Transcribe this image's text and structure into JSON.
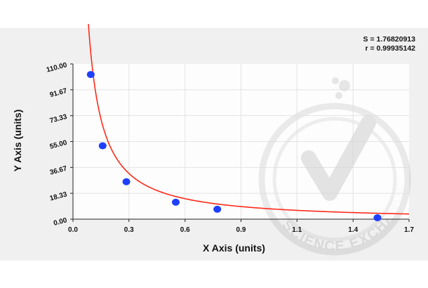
{
  "stats": {
    "s_text": "S = 1.76820913",
    "r_text": "r = 0.99935142"
  },
  "watermark": {
    "text": "THE SCIENCE EXCHANGE NETWORK",
    "kind": "logo"
  },
  "colors": {
    "curve": "#ff2a1a",
    "points": "#1f3fff",
    "plot_bg": "#ffffff",
    "panel_bg": "#f0f0f0",
    "grid": "#e3e3e3",
    "watermark": "#d8d8d8"
  },
  "chart_data": {
    "type": "scatter",
    "title": "",
    "xlabel": "X Axis (units)",
    "ylabel": "Y Axis (units)",
    "xlim": [
      0,
      1.7
    ],
    "ylim": [
      0,
      110
    ],
    "xticks": [
      "0.0",
      "0.3",
      "0.6",
      "0.9",
      "1.1",
      "1.4",
      "1.7"
    ],
    "xtick_values": [
      0.0,
      0.283,
      0.567,
      0.85,
      1.133,
      1.417,
      1.7
    ],
    "yticks": [
      "0.00",
      "18.33",
      "36.67",
      "55.00",
      "73.33",
      "91.67",
      "110.00"
    ],
    "ytick_values": [
      0,
      18.33,
      36.67,
      55.0,
      73.33,
      91.67,
      110.0
    ],
    "grid": true,
    "series": [
      {
        "kind": "points",
        "x": [
          0.09,
          0.15,
          0.27,
          0.52,
          0.73,
          1.54
        ],
        "y": [
          102.5,
          52.0,
          26.5,
          12.0,
          7.0,
          1.0
        ]
      },
      {
        "kind": "fit-curve",
        "model": "y = a*x^b + c",
        "params": {
          "a": 8.2,
          "b": -1.11,
          "c": -0.9
        },
        "x_range": [
          0.078,
          1.7
        ]
      }
    ]
  }
}
